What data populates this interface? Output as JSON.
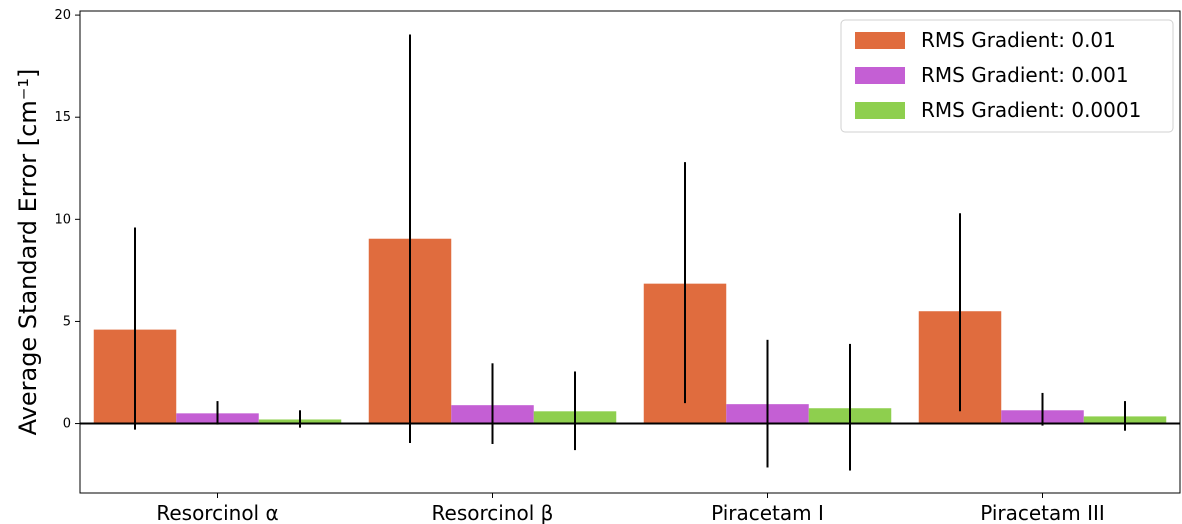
{
  "chart_data": {
    "type": "bar",
    "categories": [
      "Resorcinol α",
      "Resorcinol β",
      "Piracetam I",
      "Piracetam III"
    ],
    "ylabel": "Average Standard Error [cm⁻¹]",
    "xlabel": "",
    "ylim": [
      -3.4,
      20.2
    ],
    "yticks": [
      0,
      5,
      10,
      15,
      20
    ],
    "zero_line": true,
    "legend_position": "top-right",
    "grid": false,
    "series": [
      {
        "name": "RMS Gradient: 0.01",
        "color": "#e06c3e",
        "values": [
          4.6,
          9.05,
          6.85,
          5.5
        ],
        "error_low": [
          -0.3,
          -0.95,
          1.0,
          0.6
        ],
        "error_high": [
          9.6,
          19.05,
          12.8,
          10.3
        ]
      },
      {
        "name": "RMS Gradient: 0.001",
        "color": "#c45fd4",
        "values": [
          0.5,
          0.9,
          0.95,
          0.65
        ],
        "error_low": [
          -0.05,
          -1.0,
          -2.15,
          -0.1
        ],
        "error_high": [
          1.1,
          2.95,
          4.1,
          1.5
        ]
      },
      {
        "name": "RMS Gradient: 0.0001",
        "color": "#8ecf4e",
        "values": [
          0.2,
          0.6,
          0.75,
          0.35
        ],
        "error_low": [
          -0.2,
          -1.3,
          -2.3,
          -0.35
        ],
        "error_high": [
          0.65,
          2.55,
          3.9,
          1.1
        ]
      }
    ]
  }
}
